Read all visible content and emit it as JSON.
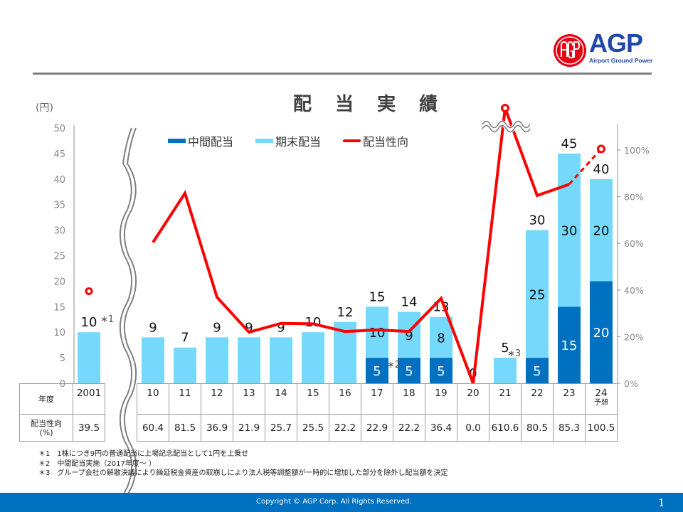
{
  "header": {
    "logo": {
      "mark": "AGP-emblem",
      "name": "AGP",
      "tagline": "Airport Ground Power"
    }
  },
  "chart_data": {
    "type": "bar",
    "title": "配 当 実 績",
    "ylabel": "(円)",
    "ylim": [
      0,
      50
    ],
    "yticks": [
      0,
      5,
      10,
      15,
      20,
      25,
      30,
      35,
      40,
      45,
      50
    ],
    "y2lim": [
      0,
      100
    ],
    "y2ticks": [
      "0%",
      "20%",
      "40%",
      "60%",
      "80%",
      "100%"
    ],
    "y2tick_values": [
      0,
      20,
      40,
      60,
      80,
      100
    ],
    "legend": [
      {
        "name": "中間配当",
        "color": "#0070c0",
        "kind": "bar"
      },
      {
        "name": "期末配当",
        "color": "#75d9fb",
        "kind": "bar"
      },
      {
        "name": "配当性向",
        "color": "#ff0000",
        "kind": "line"
      }
    ],
    "legend_position": "top",
    "categories": [
      "2001",
      "10",
      "11",
      "12",
      "13",
      "14",
      "15",
      "16",
      "17",
      "18",
      "19",
      "20",
      "21",
      "22",
      "23",
      "24"
    ],
    "forecast_flags": [
      false,
      false,
      false,
      false,
      false,
      false,
      false,
      false,
      false,
      false,
      false,
      false,
      false,
      false,
      false,
      true
    ],
    "forecast_label": "予想",
    "series": [
      {
        "name": "中間配当",
        "values": [
          0,
          0,
          0,
          0,
          0,
          0,
          0,
          0,
          5,
          5,
          5,
          0,
          0,
          5,
          15,
          20
        ]
      },
      {
        "name": "期末配当",
        "values": [
          10,
          9,
          7,
          9,
          9,
          9,
          10,
          12,
          10,
          9,
          8,
          0,
          5,
          25,
          30,
          20
        ]
      },
      {
        "name": "配当性向",
        "axis": "right",
        "values": [
          39.5,
          60.4,
          81.5,
          36.9,
          21.9,
          25.7,
          25.5,
          22.2,
          22.9,
          22.2,
          36.4,
          0.0,
          610.6,
          80.5,
          85.3,
          100.5
        ]
      }
    ],
    "totals": [
      10,
      9,
      7,
      9,
      9,
      9,
      10,
      12,
      15,
      14,
      13,
      0,
      5,
      30,
      45,
      40
    ],
    "annotations": [
      {
        "category": "2001",
        "text": "*1"
      },
      {
        "category": "17",
        "text": "*2"
      },
      {
        "category": "21",
        "text": "*3"
      }
    ],
    "axis_breaks": [
      "between 2001 and 10 (x-axis)",
      "payout ratio at 21 exceeds scale"
    ]
  },
  "table": {
    "row1_label": "年度",
    "row2_label_line1": "配当性向",
    "row2_label_line2": "(%)",
    "years": [
      "2001",
      "10",
      "11",
      "12",
      "13",
      "14",
      "15",
      "16",
      "17",
      "18",
      "19",
      "20",
      "21",
      "22",
      "23",
      "24"
    ],
    "payout": [
      "39.5",
      "60.4",
      "81.5",
      "36.9",
      "21.9",
      "25.7",
      "25.5",
      "22.2",
      "22.9",
      "22.2",
      "36.4",
      "0.0",
      "610.6",
      "80.5",
      "85.3",
      "100.5"
    ],
    "forecast_label": "予想"
  },
  "notes": [
    "＊1　1株につき9円の普通配当に上場記念配当として1円を上乗せ",
    "＊2　中間配当実施（2017年度～ ）",
    "＊3　グループ会社の解散決議により繰延税金資産の取崩しにより法人税等調整額が一時的に増加した部分を除外し配当額を決定"
  ],
  "footer": {
    "copyright": "Copyright © AGP Corp. All Rights Reserved.",
    "page": "1"
  }
}
